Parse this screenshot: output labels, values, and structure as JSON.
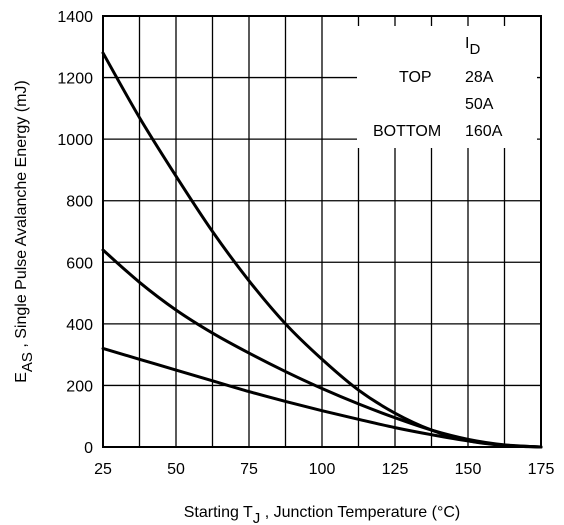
{
  "chart_data": {
    "type": "line",
    "title": "",
    "xlabel": {
      "parts": [
        {
          "text": "Starting T",
          "sub": false
        },
        {
          "text": "J",
          "sub": true
        },
        {
          "text": " , Junction Temperature (°C)",
          "sub": false
        }
      ]
    },
    "ylabel": {
      "parts": [
        {
          "text": "E",
          "sub": false
        },
        {
          "text": "AS",
          "sub": true
        },
        {
          "text": " , Single Pulse Avalanche Energy (mJ)",
          "sub": false
        }
      ]
    },
    "xlim": [
      25,
      175
    ],
    "ylim": [
      0,
      1400
    ],
    "x_ticks": [
      25,
      50,
      75,
      100,
      125,
      150,
      175
    ],
    "y_ticks": [
      0,
      200,
      400,
      600,
      800,
      1000,
      1200,
      1400
    ],
    "grid": true,
    "x_minor_gridlines": true,
    "legend": {
      "position": "top-right",
      "header": {
        "main": "I",
        "sub": "D"
      },
      "rows": [
        {
          "label": "TOP",
          "value": "28A"
        },
        {
          "label": "",
          "value": "50A"
        },
        {
          "label": "BOTTOM",
          "value": "160A"
        }
      ]
    },
    "series": [
      {
        "x": [
          25,
          37.5,
          50,
          62.5,
          75,
          87.5,
          100,
          112.5,
          125,
          137.5,
          150,
          162.5,
          175
        ],
        "y": [
          1280,
          1070,
          880,
          700,
          540,
          400,
          285,
          185,
          110,
          55,
          20,
          5,
          0
        ]
      },
      {
        "x": [
          25,
          37.5,
          50,
          62.5,
          75,
          87.5,
          100,
          112.5,
          125,
          137.5,
          150,
          162.5,
          175
        ],
        "y": [
          640,
          535,
          445,
          370,
          305,
          245,
          190,
          140,
          95,
          55,
          25,
          7,
          0
        ]
      },
      {
        "x": [
          25,
          37.5,
          50,
          62.5,
          75,
          87.5,
          100,
          112.5,
          125,
          137.5,
          150,
          162.5,
          175
        ],
        "y": [
          320,
          285,
          250,
          215,
          180,
          148,
          118,
          90,
          63,
          40,
          20,
          6,
          0
        ]
      }
    ]
  }
}
